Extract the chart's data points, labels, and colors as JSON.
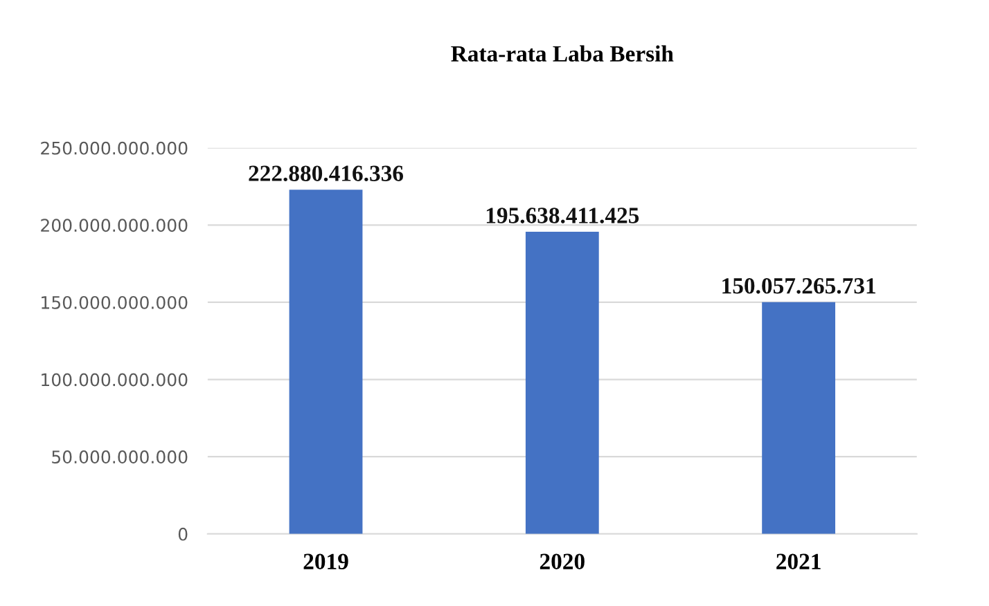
{
  "chart_data": {
    "type": "bar",
    "title": "Rata-rata Laba Bersih",
    "categories": [
      "2019",
      "2020",
      "2021"
    ],
    "values": [
      222880416336,
      195638411425,
      150057265731
    ],
    "value_labels": [
      "222.880.416.336",
      "195.638.411.425",
      "150.057.265.731"
    ],
    "color": "#4472c4",
    "ylim": [
      0,
      250000000000
    ],
    "yticks": [
      0,
      {
        "value": 50000000000,
        "label": "50.000.000.000"
      },
      {
        "value": 100000000000,
        "label": "100.000.000.000"
      },
      {
        "value": 150000000000,
        "label": "150.000.000.000"
      },
      {
        "value": 200000000000,
        "label": "200.000.000.000"
      },
      {
        "value": 250000000000,
        "label": "250.000.000.000"
      }
    ],
    "grid": "y"
  }
}
